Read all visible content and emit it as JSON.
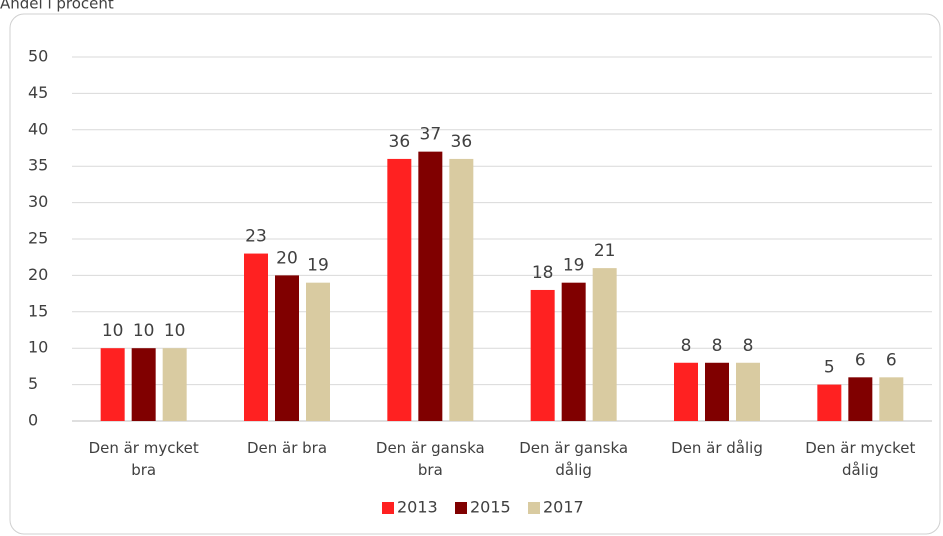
{
  "chart_data": {
    "type": "bar",
    "title": "Andel i procent",
    "categories": [
      "Den är mycket bra",
      "Den är bra",
      "Den är ganska bra",
      "Den är ganska dålig",
      "Den är dålig",
      "Den är mycket dålig"
    ],
    "series": [
      {
        "name": "2013",
        "color": "#ff2121",
        "values": [
          10,
          23,
          36,
          18,
          8,
          5
        ]
      },
      {
        "name": "2015",
        "color": "#800000",
        "values": [
          10,
          20,
          37,
          19,
          8,
          6
        ]
      },
      {
        "name": "2017",
        "color": "#d9cba1",
        "values": [
          10,
          19,
          36,
          21,
          8,
          6
        ]
      }
    ],
    "ylim": [
      0,
      50
    ],
    "yticks": [
      0,
      5,
      10,
      15,
      20,
      25,
      30,
      35,
      40,
      45,
      50
    ],
    "grid": true,
    "legend": "bottom"
  }
}
